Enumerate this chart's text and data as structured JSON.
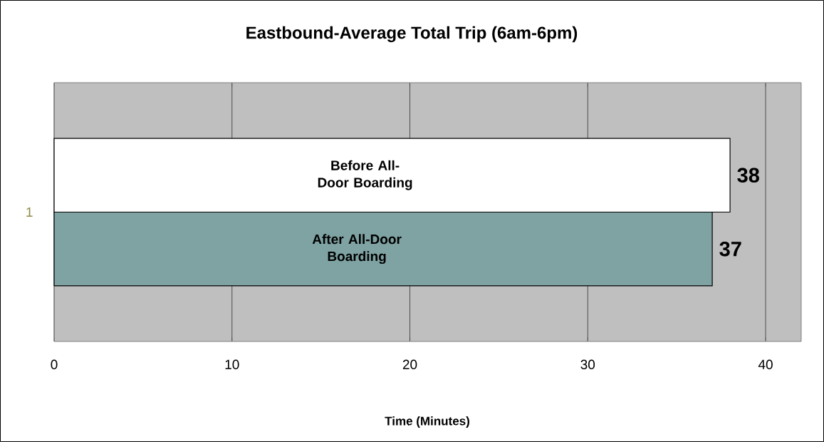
{
  "chart_data": {
    "type": "bar",
    "orientation": "horizontal",
    "title": "Eastbound-Average Total Trip (6am-6pm)",
    "xlabel": "Time (Minutes)",
    "categories": [
      "1"
    ],
    "series": [
      {
        "name": "Before All-Door Boarding",
        "color": "#ffffff",
        "values": [
          38
        ]
      },
      {
        "name": "After All-Door Boarding",
        "color": "#7fa3a3",
        "values": [
          37
        ]
      }
    ],
    "xlim": [
      0,
      42
    ],
    "xticks": [
      0,
      10,
      20,
      30,
      40
    ],
    "grid": "x",
    "data_labels": true
  }
}
